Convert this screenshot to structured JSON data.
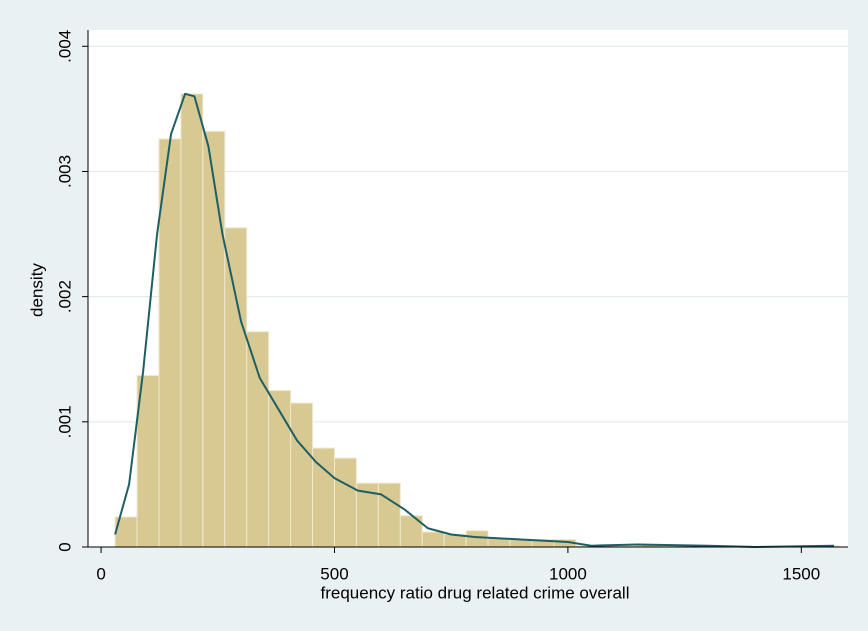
{
  "chart_data": {
    "type": "histogram",
    "xlabel": "frequency ratio drug related crime  overall",
    "ylabel": "density",
    "bins": [
      30,
      77,
      124,
      171,
      218,
      265,
      312,
      359,
      406,
      453,
      500,
      547,
      594,
      641,
      688,
      735,
      782,
      829,
      876,
      923,
      970,
      1017,
      1064,
      1111,
      1158,
      1205,
      1252,
      1299,
      1346,
      1393,
      1440,
      1487,
      1534,
      1581
    ],
    "values": [
      0.00024,
      0.00137,
      0.00326,
      0.00362,
      0.00332,
      0.00255,
      0.00172,
      0.00125,
      0.00115,
      0.00079,
      0.00071,
      0.00051,
      0.00051,
      0.00025,
      0.00012,
      0.0001,
      0.00013,
      7e-05,
      6e-05,
      6e-05,
      6e-05,
      1e-05,
      2e-05,
      1e-05,
      2e-05,
      1e-05,
      1e-05,
      0,
      1e-05,
      0,
      0,
      1e-05,
      1e-05
    ],
    "color": "#d8c993",
    "density": {
      "x": [
        30,
        60,
        90,
        120,
        150,
        180,
        200,
        230,
        260,
        300,
        340,
        380,
        420,
        460,
        500,
        550,
        600,
        650,
        700,
        750,
        800,
        900,
        1000,
        1050,
        1150,
        1300,
        1400,
        1570
      ],
      "values": [
        0.0001,
        0.0005,
        0.0014,
        0.0025,
        0.0033,
        0.00362,
        0.0036,
        0.0032,
        0.0025,
        0.0018,
        0.00135,
        0.0011,
        0.00085,
        0.00068,
        0.00055,
        0.00045,
        0.00042,
        0.0003,
        0.00015,
        0.0001,
        8e-05,
        6e-05,
        4e-05,
        1e-05,
        2e-05,
        1e-05,
        0,
        1e-05
      ],
      "color": "#1e5f63"
    },
    "xlim": [
      -28,
      1600
    ],
    "ylim": [
      0,
      0.00413
    ],
    "xticks": [
      0,
      500,
      1000,
      1500
    ],
    "yticks": [
      0,
      {
        "value": 0.001,
        "label": ".001"
      },
      {
        "value": 0.002,
        "label": ".002"
      },
      {
        "value": 0.003,
        "label": ".003"
      },
      {
        "value": 0.004,
        "label": ".004"
      }
    ],
    "grid": true
  }
}
